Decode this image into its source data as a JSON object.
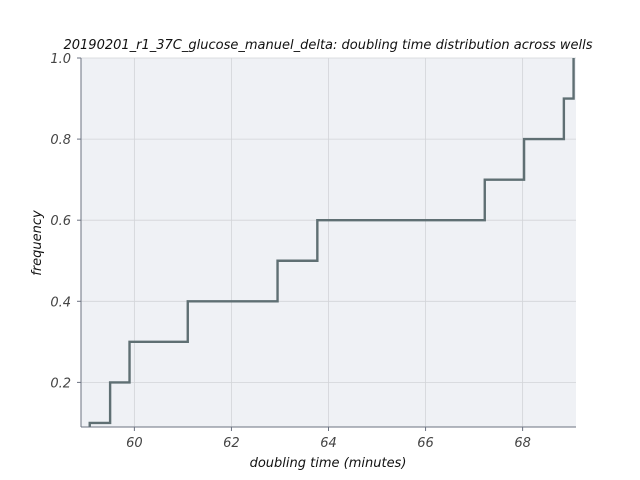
{
  "chart_data": {
    "type": "line",
    "style": "ecdf-step",
    "title": "20190201_r1_37C_glucose_manuel_delta: doubling time distribution across wells",
    "xlabel": "doubling time (minutes)",
    "ylabel": "frequency",
    "xlim": [
      58.9,
      69.1
    ],
    "ylim": [
      0.09,
      1.0
    ],
    "xticks": [
      60,
      62,
      64,
      66,
      68
    ],
    "yticks": [
      0.2,
      0.4,
      0.6,
      0.8,
      1.0
    ],
    "xtick_labels": [
      "60",
      "62",
      "64",
      "66",
      "68"
    ],
    "ytick_labels": [
      "0.2",
      "0.4",
      "0.6",
      "0.8",
      "1.0"
    ],
    "grid": true,
    "colors": {
      "line": "#5f6f73",
      "plot_background": "#eff1f5"
    },
    "series": [
      {
        "x": [
          59.08,
          59.5,
          59.9,
          61.1,
          62.95,
          63.77,
          67.22,
          68.03,
          68.85,
          69.05
        ],
        "y": [
          0.1,
          0.2,
          0.3,
          0.4,
          0.5,
          0.6,
          0.7,
          0.8,
          0.9,
          1.0
        ]
      }
    ]
  }
}
